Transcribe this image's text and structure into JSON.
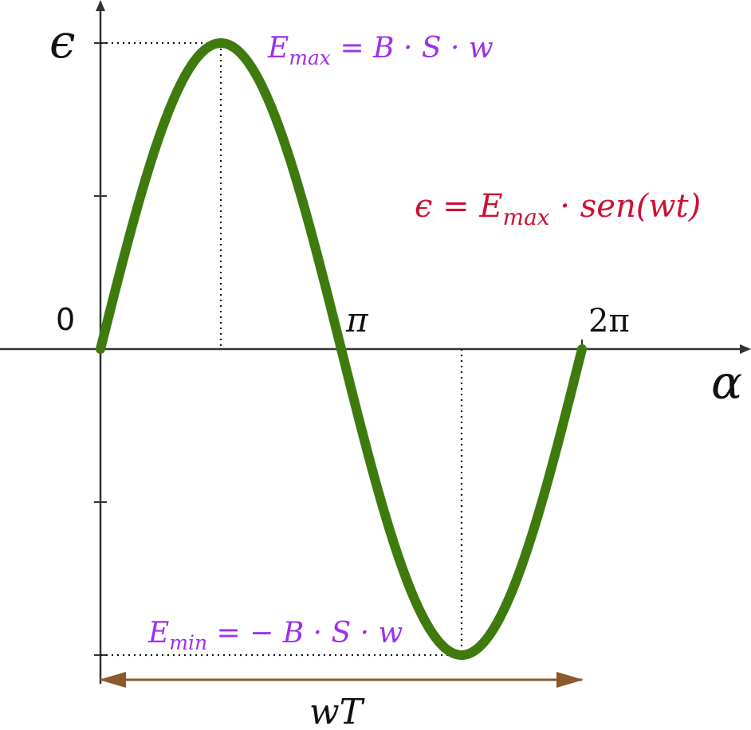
{
  "colors": {
    "axis": "#333333",
    "curve": "#3f7a0e",
    "annotation_purple": "#9b30f0",
    "formula_red": "#cc1133",
    "period_arrow": "#8b5a2b",
    "guide": "#111111"
  },
  "chart_data": {
    "type": "line",
    "function": "sine",
    "title": "",
    "xlabel": "α",
    "ylabel": "ϵ",
    "xlim": [
      -0.125,
      1.35
    ],
    "ylim": [
      -1.08,
      1.2
    ],
    "x_ticks": [
      {
        "value": 0,
        "label": "0"
      },
      {
        "value": 0.5,
        "label": "π"
      },
      {
        "value": 1,
        "label": "2π"
      }
    ],
    "x_units": "fraction of 2π",
    "y_ticks": [
      -1,
      -0.5,
      0.5,
      1
    ],
    "grid": false,
    "series": [
      {
        "x_start": 0,
        "x_end": 1,
        "amplitude": 1
      }
    ],
    "annotations": {
      "max": {
        "x": 0.25,
        "y": 1,
        "main": "E",
        "sub": "max",
        "rest": " = B · S · w"
      },
      "min": {
        "x": 0.75,
        "y": -1,
        "main": "E",
        "sub": "min",
        "rest": " = − B · S · w"
      },
      "formula": {
        "lhs": "ϵ = E",
        "sub": "max",
        "rest": " · sen(wt)"
      },
      "period": {
        "x_start": 0,
        "x_end": 1,
        "label": "wT"
      }
    }
  }
}
